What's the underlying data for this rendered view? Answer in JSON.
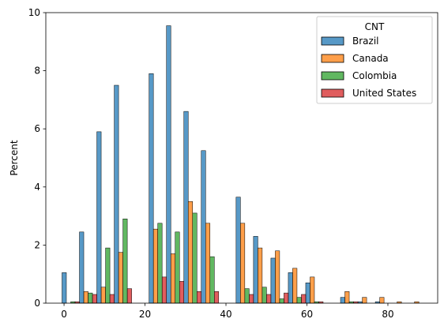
{
  "chart_data": {
    "type": "bar",
    "title": "",
    "xlabel": "",
    "ylabel": "Percent",
    "xlim": [
      -4.5,
      92.3
    ],
    "ylim": [
      0,
      10
    ],
    "xticks": [
      0,
      20,
      40,
      60,
      80
    ],
    "yticks": [
      0,
      2,
      4,
      6,
      8,
      10
    ],
    "x_tick_labels": [
      "0",
      "20",
      "40",
      "60",
      "80"
    ],
    "y_tick_labels": [
      "0",
      "2",
      "4",
      "6",
      "8",
      "10"
    ],
    "grid": false,
    "legend": {
      "title": "CNT",
      "placement": "top-right"
    },
    "bin_width": 4.3,
    "bin_starts": [
      -0.5,
      3.8,
      8.1,
      12.4,
      16.7,
      21.0,
      25.3,
      29.6,
      33.9,
      38.2,
      42.5,
      46.8,
      51.1,
      55.4,
      59.7,
      64.0,
      68.3,
      72.6,
      76.9,
      81.2,
      85.5
    ],
    "series": [
      {
        "name": "Brazil",
        "color": "#1f77b4",
        "values": [
          1.05,
          2.45,
          5.9,
          7.5,
          0,
          7.9,
          9.55,
          6.6,
          5.25,
          0,
          3.65,
          2.3,
          1.55,
          1.05,
          0.7,
          0,
          0.2,
          0.05,
          0.05,
          0,
          0
        ]
      },
      {
        "name": "Canada",
        "color": "#ff7f0e",
        "values": [
          0,
          0.4,
          0.55,
          1.75,
          0,
          2.55,
          1.7,
          3.5,
          2.75,
          0,
          2.75,
          1.9,
          1.8,
          1.2,
          0.9,
          0,
          0.4,
          0.2,
          0.2,
          0.05,
          0.05
        ]
      },
      {
        "name": "Colombia",
        "color": "#2ca02c",
        "values": [
          0.05,
          0.35,
          1.9,
          2.9,
          0,
          2.75,
          2.45,
          3.1,
          1.6,
          0,
          0.5,
          0.55,
          0.15,
          0.2,
          0.05,
          0,
          0.05,
          0,
          0,
          0,
          0
        ]
      },
      {
        "name": "United States",
        "color": "#d62728",
        "values": [
          0.05,
          0.3,
          0.3,
          0.5,
          0,
          0.9,
          0.75,
          0.4,
          0.4,
          0,
          0.3,
          0.3,
          0.35,
          0.3,
          0.05,
          0,
          0.05,
          0,
          0,
          0,
          0
        ]
      }
    ]
  }
}
